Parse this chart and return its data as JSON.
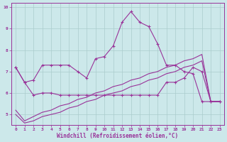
{
  "background_color": "#cce8ea",
  "grid_color": "#aacccc",
  "line_color": "#993399",
  "xlim": [
    -0.5,
    23.5
  ],
  "ylim": [
    4.5,
    10.2
  ],
  "xlabel": "Windchill (Refroidissement éolien,°C)",
  "xtick_labels": [
    "0",
    "1",
    "2",
    "3",
    "4",
    "5",
    "6",
    "7",
    "8",
    "9",
    "10",
    "11",
    "12",
    "13",
    "14",
    "15",
    "16",
    "17",
    "18",
    "19",
    "20",
    "21",
    "22",
    "23"
  ],
  "xtick_pos": [
    0,
    1,
    2,
    3,
    4,
    5,
    6,
    7,
    8,
    9,
    10,
    11,
    12,
    13,
    14,
    15,
    16,
    17,
    18,
    19,
    20,
    21,
    22,
    23
  ],
  "ytick_labels": [
    "5",
    "6",
    "7",
    "8",
    "9",
    "10"
  ],
  "ytick_pos": [
    5,
    6,
    7,
    8,
    9,
    10
  ],
  "series1_x": [
    0,
    1,
    2,
    3,
    4,
    5,
    6,
    7,
    8,
    9,
    10,
    11,
    12,
    13,
    14,
    15,
    16,
    17,
    18,
    19,
    20,
    21,
    22,
    23
  ],
  "series1_y": [
    7.2,
    6.5,
    6.6,
    7.3,
    7.3,
    7.3,
    7.3,
    7.0,
    6.7,
    7.6,
    7.7,
    8.2,
    9.3,
    9.8,
    9.3,
    9.1,
    8.3,
    7.3,
    7.3,
    7.0,
    6.9,
    5.6,
    5.6,
    5.6
  ],
  "series2_x": [
    0,
    1,
    2,
    3,
    4,
    5,
    6,
    7,
    8,
    9,
    10,
    11,
    12,
    13,
    14,
    15,
    16,
    17,
    18,
    19,
    20,
    21,
    22,
    23
  ],
  "series2_y": [
    7.2,
    6.5,
    5.9,
    6.0,
    6.0,
    5.9,
    5.9,
    5.9,
    5.9,
    5.9,
    5.9,
    5.9,
    5.9,
    5.9,
    5.9,
    5.9,
    5.9,
    6.5,
    6.5,
    6.7,
    7.2,
    7.0,
    5.6,
    5.6
  ],
  "series3_x": [
    0,
    1,
    2,
    3,
    4,
    5,
    6,
    7,
    8,
    9,
    10,
    11,
    12,
    13,
    14,
    15,
    16,
    17,
    18,
    19,
    20,
    21,
    22,
    23
  ],
  "series3_y": [
    5.0,
    4.6,
    4.7,
    4.9,
    5.0,
    5.1,
    5.3,
    5.4,
    5.6,
    5.7,
    5.9,
    6.0,
    6.1,
    6.3,
    6.4,
    6.6,
    6.7,
    6.9,
    7.0,
    7.2,
    7.3,
    7.5,
    5.6,
    5.6
  ],
  "series4_x": [
    0,
    1,
    2,
    3,
    4,
    5,
    6,
    7,
    8,
    9,
    10,
    11,
    12,
    13,
    14,
    15,
    16,
    17,
    18,
    19,
    20,
    21,
    22,
    23
  ],
  "series4_y": [
    5.2,
    4.7,
    4.9,
    5.1,
    5.2,
    5.4,
    5.5,
    5.7,
    5.8,
    6.0,
    6.1,
    6.3,
    6.4,
    6.6,
    6.7,
    6.9,
    7.0,
    7.2,
    7.3,
    7.5,
    7.6,
    7.8,
    5.6,
    5.6
  ]
}
